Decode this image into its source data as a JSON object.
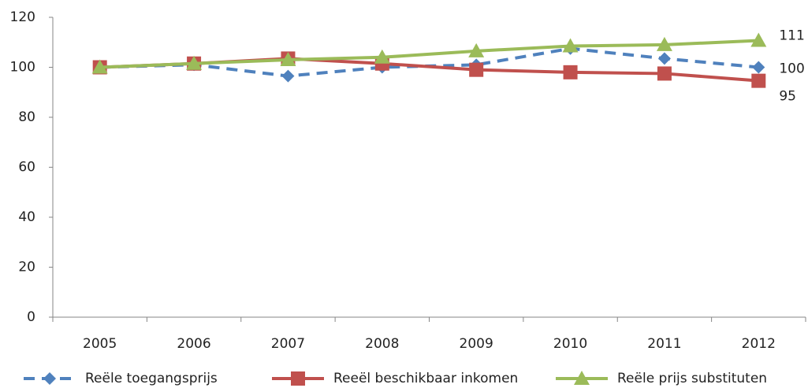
{
  "chart_data": {
    "type": "line",
    "categories": [
      "2005",
      "2006",
      "2007",
      "2008",
      "2009",
      "2010",
      "2011",
      "2012"
    ],
    "series": [
      {
        "name": "Reële toegangsprijs",
        "color": "#4f81bd",
        "marker": "diamond",
        "dashed": true,
        "values": [
          100,
          101,
          96.5,
          100,
          101,
          107.5,
          103.5,
          100
        ],
        "value_labels": [
          null,
          null,
          null,
          null,
          null,
          null,
          null,
          "100"
        ]
      },
      {
        "name": "Reeël beschikbaar inkomen",
        "color": "#c0504d",
        "marker": "square",
        "dashed": false,
        "values": [
          100,
          101.5,
          103.5,
          101.5,
          99,
          98,
          97.5,
          94.6
        ],
        "value_labels": [
          null,
          null,
          null,
          null,
          null,
          null,
          null,
          "95"
        ]
      },
      {
        "name": "Reële prijs substituten",
        "color": "#9bbb59",
        "marker": "triangle",
        "dashed": false,
        "values": [
          100,
          101.5,
          103,
          104,
          106.5,
          108.5,
          109,
          110.7
        ],
        "value_labels": [
          null,
          null,
          null,
          null,
          null,
          null,
          null,
          "111"
        ]
      }
    ],
    "ylim": [
      0,
      120
    ],
    "yticks": [
      0,
      20,
      40,
      60,
      80,
      100,
      120
    ],
    "grid": false,
    "legend": "bottom"
  }
}
